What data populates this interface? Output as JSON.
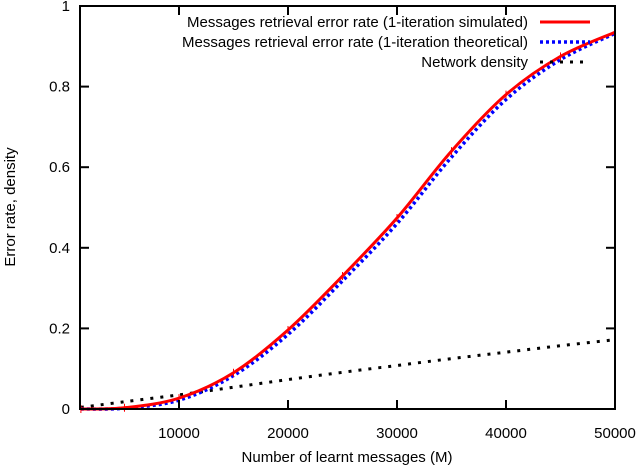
{
  "chart_data": {
    "type": "line",
    "title": "",
    "xlabel": "Number of learnt messages (M)",
    "ylabel": "Error rate, density",
    "xlim": [
      1000,
      50000
    ],
    "ylim": [
      0,
      1
    ],
    "grid": false,
    "legend_position": "top-right (inside)",
    "xticks": [
      10000,
      20000,
      30000,
      40000,
      50000
    ],
    "xtick_labels": [
      "10000",
      "20000",
      "30000",
      "40000",
      "50000"
    ],
    "yticks": [
      0,
      0.2,
      0.4,
      0.6,
      0.8,
      1
    ],
    "ytick_labels": [
      "0",
      "0.2",
      "0.4",
      "0.6",
      "0.8",
      "1"
    ],
    "x": [
      1000,
      5000,
      10000,
      15000,
      20000,
      25000,
      30000,
      35000,
      40000,
      45000,
      50000
    ],
    "series": [
      {
        "name": "Messages retrieval error rate (1-iteration simulated)",
        "color": "#ff0000",
        "style": "solid",
        "values": [
          0.0,
          0.003,
          0.027,
          0.09,
          0.196,
          0.33,
          0.474,
          0.64,
          0.78,
          0.875,
          0.935
        ]
      },
      {
        "name": "Messages retrieval error rate (1-iteration theoretical)",
        "color": "#0000ff",
        "style": "dotted",
        "values": [
          0.0,
          0.002,
          0.022,
          0.083,
          0.185,
          0.318,
          0.46,
          0.625,
          0.768,
          0.867,
          0.932
        ]
      },
      {
        "name": "Network density",
        "color": "#000000",
        "style": "dashed",
        "values": [
          0.004,
          0.018,
          0.035,
          0.054,
          0.073,
          0.091,
          0.108,
          0.125,
          0.141,
          0.157,
          0.172
        ]
      }
    ]
  }
}
